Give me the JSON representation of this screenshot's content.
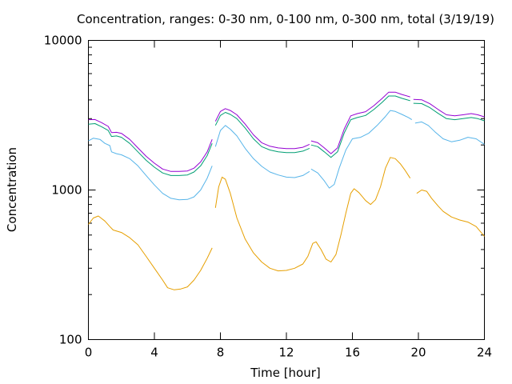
{
  "chart_data": {
    "type": "line",
    "title": "Concentration, ranges: 0-30 nm, 0-100 nm, 0-300 nm, total (3/19/19)",
    "xlabel": "Time [hour]",
    "ylabel": "Concentration",
    "xlim": [
      0,
      24
    ],
    "ylim": [
      100,
      10000
    ],
    "yscale": "log",
    "grid": false,
    "legend": "none",
    "xticks": [
      0,
      4,
      8,
      12,
      16,
      20,
      24
    ],
    "xtick_labels": [
      "0",
      "4",
      "8",
      "12",
      "16",
      "20",
      "24"
    ],
    "yticks": [
      100,
      1000,
      10000
    ],
    "ytick_labels": [
      "100",
      "1000",
      "10000"
    ],
    "series": [
      {
        "color": "#e69f00",
        "segments": [
          [
            [
              0,
              590
            ],
            [
              0.3,
              650
            ],
            [
              0.6,
              670
            ],
            [
              1.0,
              620
            ],
            [
              1.3,
              570
            ],
            [
              1.5,
              540
            ],
            [
              2.0,
              520
            ],
            [
              2.5,
              480
            ],
            [
              3.0,
              430
            ],
            [
              3.5,
              360
            ],
            [
              4.0,
              300
            ],
            [
              4.5,
              250
            ],
            [
              4.8,
              222
            ],
            [
              5.2,
              215
            ],
            [
              5.6,
              218
            ],
            [
              6.0,
              225
            ],
            [
              6.4,
              250
            ],
            [
              6.8,
              290
            ],
            [
              7.2,
              350
            ],
            [
              7.5,
              410
            ]
          ],
          [
            [
              7.7,
              760
            ],
            [
              7.9,
              1050
            ],
            [
              8.1,
              1220
            ],
            [
              8.3,
              1180
            ],
            [
              8.6,
              950
            ],
            [
              9.0,
              650
            ],
            [
              9.5,
              470
            ],
            [
              10.0,
              380
            ],
            [
              10.5,
              330
            ],
            [
              11.0,
              300
            ],
            [
              11.5,
              288
            ],
            [
              12.0,
              290
            ],
            [
              12.5,
              300
            ],
            [
              13.0,
              320
            ],
            [
              13.3,
              360
            ],
            [
              13.6,
              440
            ],
            [
              13.8,
              450
            ],
            [
              14.1,
              400
            ],
            [
              14.4,
              345
            ],
            [
              14.7,
              330
            ],
            [
              15.0,
              370
            ],
            [
              15.3,
              500
            ],
            [
              15.6,
              700
            ],
            [
              15.9,
              950
            ],
            [
              16.1,
              1020
            ],
            [
              16.4,
              960
            ],
            [
              16.8,
              850
            ],
            [
              17.1,
              800
            ],
            [
              17.4,
              860
            ],
            [
              17.7,
              1050
            ],
            [
              18.0,
              1400
            ],
            [
              18.3,
              1650
            ],
            [
              18.6,
              1620
            ],
            [
              18.9,
              1500
            ],
            [
              19.2,
              1350
            ],
            [
              19.5,
              1200
            ]
          ],
          [
            [
              19.9,
              950
            ],
            [
              20.2,
              1000
            ],
            [
              20.5,
              980
            ],
            [
              20.8,
              880
            ],
            [
              21.2,
              780
            ],
            [
              21.5,
              720
            ],
            [
              22.0,
              660
            ],
            [
              22.5,
              630
            ],
            [
              23.0,
              610
            ],
            [
              23.5,
              570
            ],
            [
              24.0,
              490
            ]
          ]
        ]
      },
      {
        "color": "#56b4e9",
        "segments": [
          [
            [
              0,
              2130
            ],
            [
              0.3,
              2220
            ],
            [
              0.7,
              2180
            ],
            [
              1.0,
              2050
            ],
            [
              1.3,
              1980
            ],
            [
              1.4,
              1800
            ],
            [
              1.7,
              1750
            ],
            [
              2.0,
              1720
            ],
            [
              2.5,
              1620
            ],
            [
              3.0,
              1450
            ],
            [
              3.5,
              1250
            ],
            [
              4.0,
              1080
            ],
            [
              4.5,
              950
            ],
            [
              5.0,
              880
            ],
            [
              5.5,
              860
            ],
            [
              6.0,
              865
            ],
            [
              6.4,
              900
            ],
            [
              6.8,
              1000
            ],
            [
              7.2,
              1200
            ],
            [
              7.5,
              1450
            ]
          ],
          [
            [
              7.7,
              1950
            ],
            [
              8.0,
              2500
            ],
            [
              8.3,
              2700
            ],
            [
              8.6,
              2550
            ],
            [
              9.0,
              2300
            ],
            [
              9.5,
              1900
            ],
            [
              10.0,
              1620
            ],
            [
              10.5,
              1440
            ],
            [
              11.0,
              1320
            ],
            [
              11.5,
              1260
            ],
            [
              12.0,
              1220
            ],
            [
              12.5,
              1210
            ],
            [
              13.0,
              1250
            ],
            [
              13.4,
              1330
            ]
          ],
          [
            [
              13.5,
              1380
            ],
            [
              13.9,
              1300
            ],
            [
              14.3,
              1150
            ],
            [
              14.6,
              1030
            ],
            [
              14.9,
              1090
            ],
            [
              15.2,
              1400
            ],
            [
              15.6,
              1850
            ],
            [
              16.0,
              2200
            ],
            [
              16.5,
              2250
            ],
            [
              17.0,
              2400
            ],
            [
              17.5,
              2700
            ],
            [
              18.0,
              3100
            ],
            [
              18.3,
              3400
            ],
            [
              18.6,
              3350
            ],
            [
              19.0,
              3200
            ],
            [
              19.4,
              3050
            ],
            [
              19.6,
              2950
            ]
          ],
          [
            [
              19.8,
              2800
            ],
            [
              20.2,
              2850
            ],
            [
              20.6,
              2700
            ],
            [
              21.0,
              2450
            ],
            [
              21.5,
              2200
            ],
            [
              22.0,
              2100
            ],
            [
              22.5,
              2150
            ],
            [
              23.0,
              2250
            ],
            [
              23.5,
              2200
            ],
            [
              24.0,
              2020
            ]
          ]
        ]
      },
      {
        "color": "#009e73",
        "segments": [
          [
            [
              0,
              2750
            ],
            [
              0.4,
              2780
            ],
            [
              0.8,
              2650
            ],
            [
              1.2,
              2500
            ],
            [
              1.4,
              2280
            ],
            [
              1.7,
              2300
            ],
            [
              2.0,
              2250
            ],
            [
              2.5,
              2050
            ],
            [
              3.0,
              1800
            ],
            [
              3.5,
              1580
            ],
            [
              4.0,
              1420
            ],
            [
              4.5,
              1300
            ],
            [
              5.0,
              1250
            ],
            [
              5.5,
              1250
            ],
            [
              6.0,
              1260
            ],
            [
              6.4,
              1320
            ],
            [
              6.8,
              1450
            ],
            [
              7.2,
              1700
            ],
            [
              7.5,
              2050
            ]
          ],
          [
            [
              7.7,
              2700
            ],
            [
              8.0,
              3150
            ],
            [
              8.3,
              3300
            ],
            [
              8.6,
              3200
            ],
            [
              9.0,
              3000
            ],
            [
              9.5,
              2600
            ],
            [
              10.0,
              2200
            ],
            [
              10.5,
              1950
            ],
            [
              11.0,
              1850
            ],
            [
              11.5,
              1800
            ],
            [
              12.0,
              1780
            ],
            [
              12.5,
              1780
            ],
            [
              13.0,
              1820
            ],
            [
              13.4,
              1900
            ]
          ],
          [
            [
              13.5,
              2000
            ],
            [
              13.9,
              1950
            ],
            [
              14.3,
              1800
            ],
            [
              14.7,
              1650
            ],
            [
              15.1,
              1800
            ],
            [
              15.5,
              2400
            ],
            [
              15.9,
              2950
            ],
            [
              16.3,
              3050
            ],
            [
              16.8,
              3150
            ],
            [
              17.3,
              3450
            ],
            [
              17.8,
              3850
            ],
            [
              18.2,
              4250
            ],
            [
              18.6,
              4250
            ],
            [
              19.0,
              4100
            ],
            [
              19.5,
              3950
            ]
          ],
          [
            [
              19.7,
              3800
            ],
            [
              20.2,
              3780
            ],
            [
              20.7,
              3550
            ],
            [
              21.2,
              3250
            ],
            [
              21.7,
              3000
            ],
            [
              22.2,
              2950
            ],
            [
              22.7,
              3000
            ],
            [
              23.2,
              3050
            ],
            [
              23.6,
              3000
            ],
            [
              24.0,
              2900
            ]
          ]
        ]
      },
      {
        "color": "#9400d3",
        "segments": [
          [
            [
              0,
              2950
            ],
            [
              0.4,
              2960
            ],
            [
              0.8,
              2820
            ],
            [
              1.2,
              2660
            ],
            [
              1.4,
              2420
            ],
            [
              1.7,
              2430
            ],
            [
              2.0,
              2390
            ],
            [
              2.5,
              2180
            ],
            [
              3.0,
              1910
            ],
            [
              3.5,
              1680
            ],
            [
              4.0,
              1510
            ],
            [
              4.5,
              1380
            ],
            [
              5.0,
              1330
            ],
            [
              5.5,
              1330
            ],
            [
              6.0,
              1340
            ],
            [
              6.4,
              1400
            ],
            [
              6.8,
              1540
            ],
            [
              7.2,
              1800
            ],
            [
              7.5,
              2180
            ]
          ],
          [
            [
              7.7,
              2880
            ],
            [
              8.0,
              3350
            ],
            [
              8.3,
              3500
            ],
            [
              8.6,
              3400
            ],
            [
              9.0,
              3180
            ],
            [
              9.5,
              2760
            ],
            [
              10.0,
              2340
            ],
            [
              10.5,
              2070
            ],
            [
              11.0,
              1960
            ],
            [
              11.5,
              1910
            ],
            [
              12.0,
              1890
            ],
            [
              12.5,
              1890
            ],
            [
              13.0,
              1930
            ],
            [
              13.4,
              2020
            ]
          ],
          [
            [
              13.5,
              2130
            ],
            [
              13.9,
              2070
            ],
            [
              14.3,
              1910
            ],
            [
              14.7,
              1750
            ],
            [
              15.1,
              1910
            ],
            [
              15.5,
              2550
            ],
            [
              15.9,
              3130
            ],
            [
              16.3,
              3240
            ],
            [
              16.8,
              3340
            ],
            [
              17.3,
              3660
            ],
            [
              17.8,
              4090
            ],
            [
              18.2,
              4510
            ],
            [
              18.6,
              4510
            ],
            [
              19.0,
              4350
            ],
            [
              19.5,
              4190
            ]
          ],
          [
            [
              19.7,
              4030
            ],
            [
              20.2,
              4010
            ],
            [
              20.7,
              3770
            ],
            [
              21.2,
              3450
            ],
            [
              21.7,
              3180
            ],
            [
              22.2,
              3130
            ],
            [
              22.7,
              3180
            ],
            [
              23.2,
              3240
            ],
            [
              23.6,
              3180
            ],
            [
              24.0,
              3080
            ]
          ]
        ]
      }
    ]
  }
}
